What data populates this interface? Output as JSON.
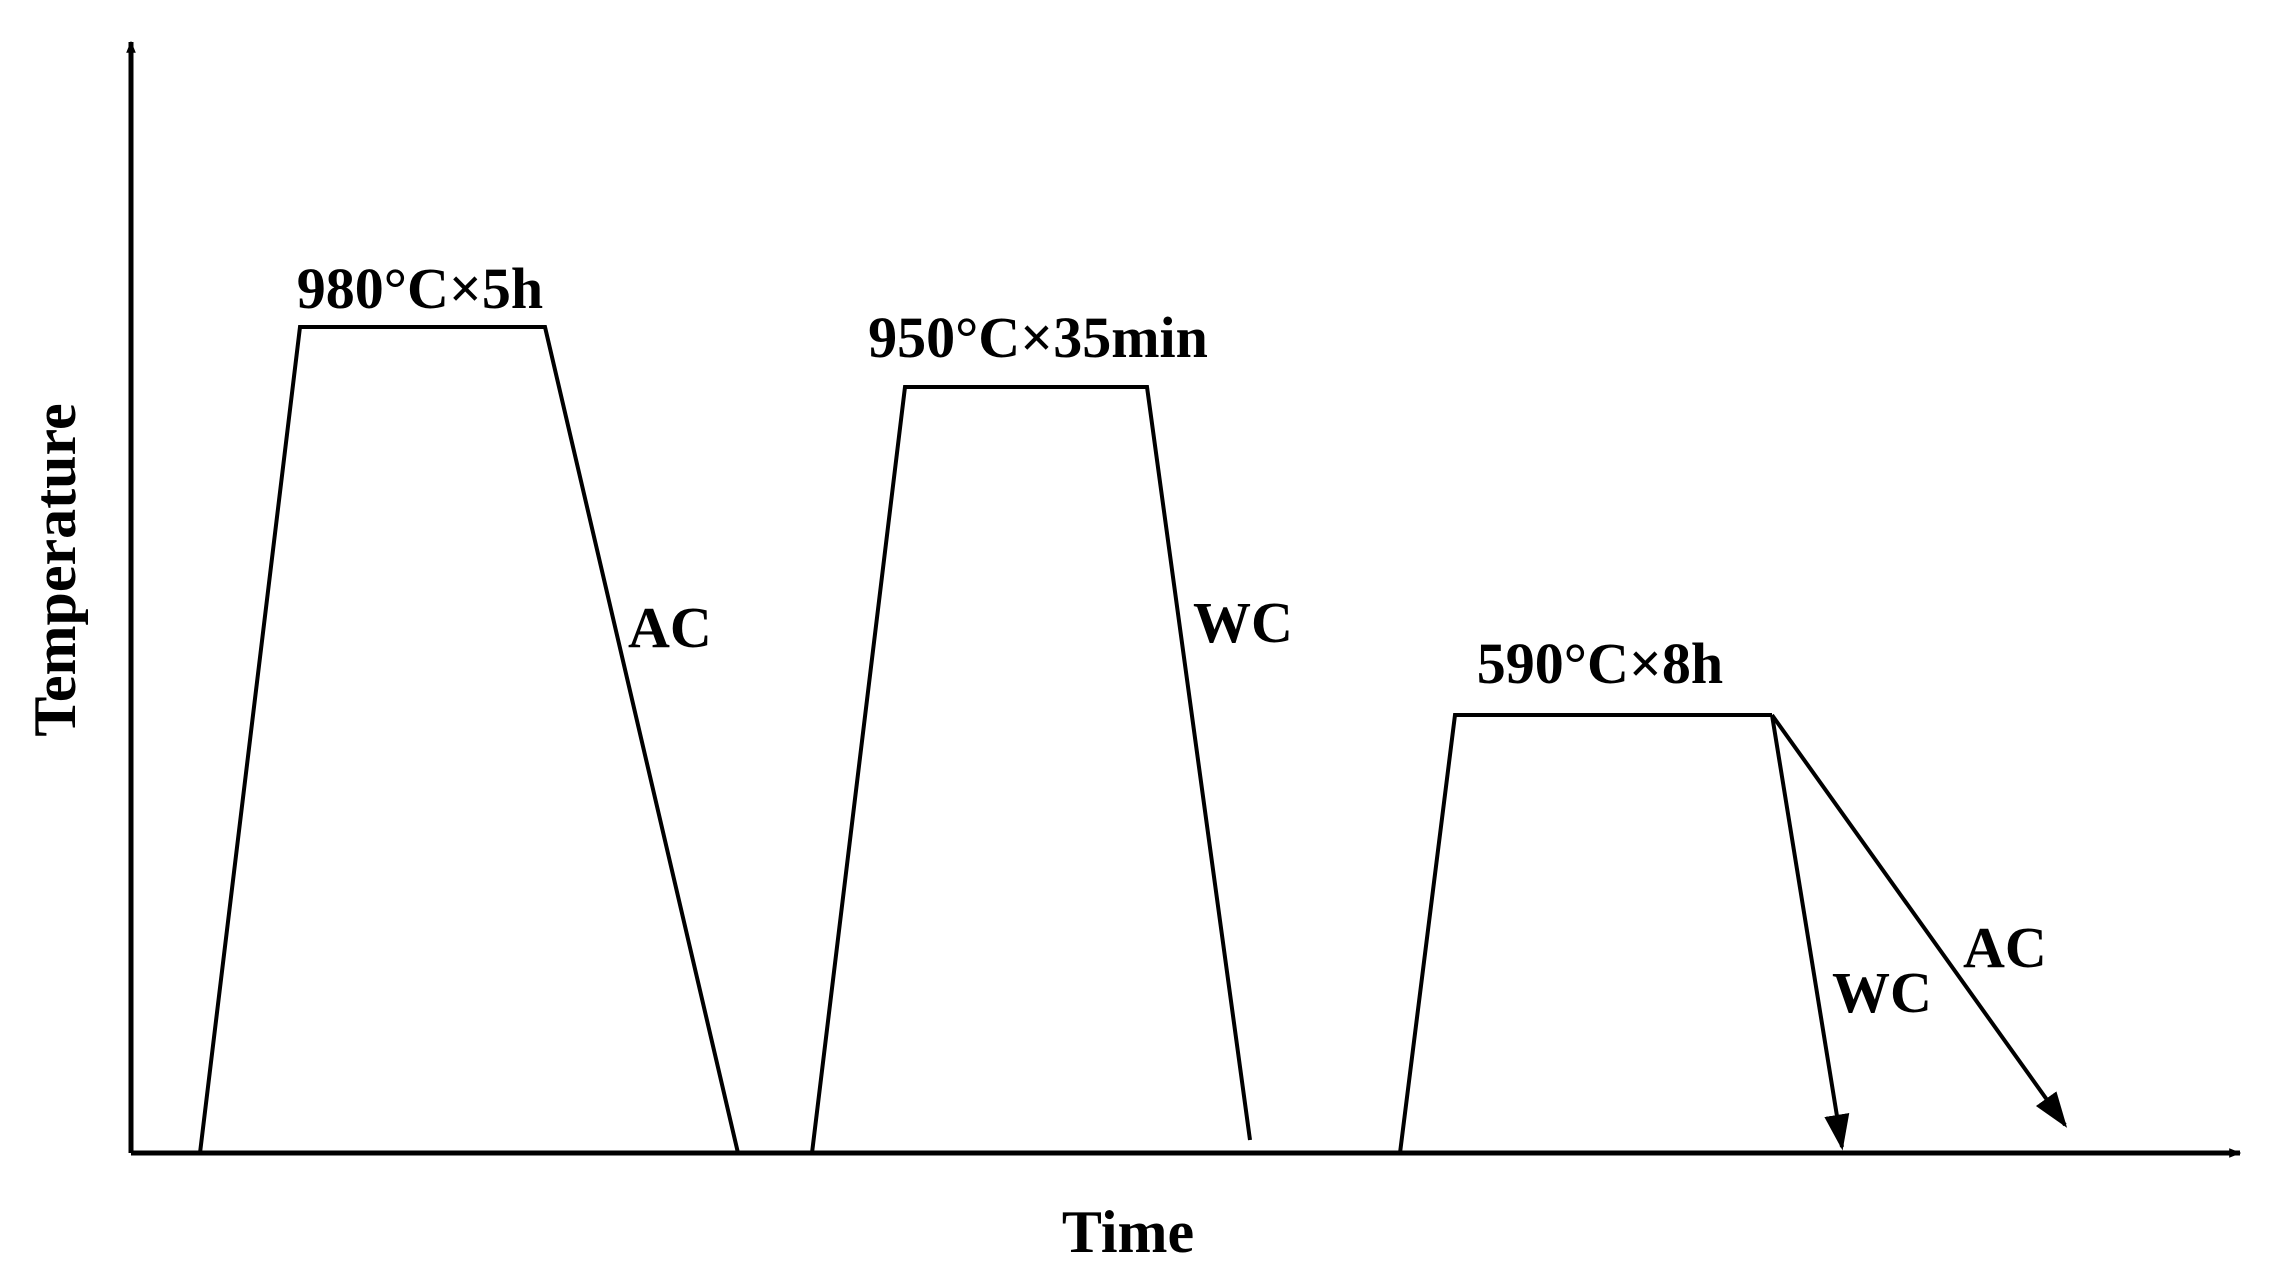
{
  "axes": {
    "y_label": "Temperature",
    "x_label": "Time"
  },
  "steps": [
    {
      "label": "980°C×5h",
      "cooling": [
        "AC"
      ]
    },
    {
      "label": "950°C×35min",
      "cooling": [
        "WC"
      ]
    },
    {
      "label": "590°C×8h",
      "cooling": [
        "WC",
        "AC"
      ]
    }
  ]
}
